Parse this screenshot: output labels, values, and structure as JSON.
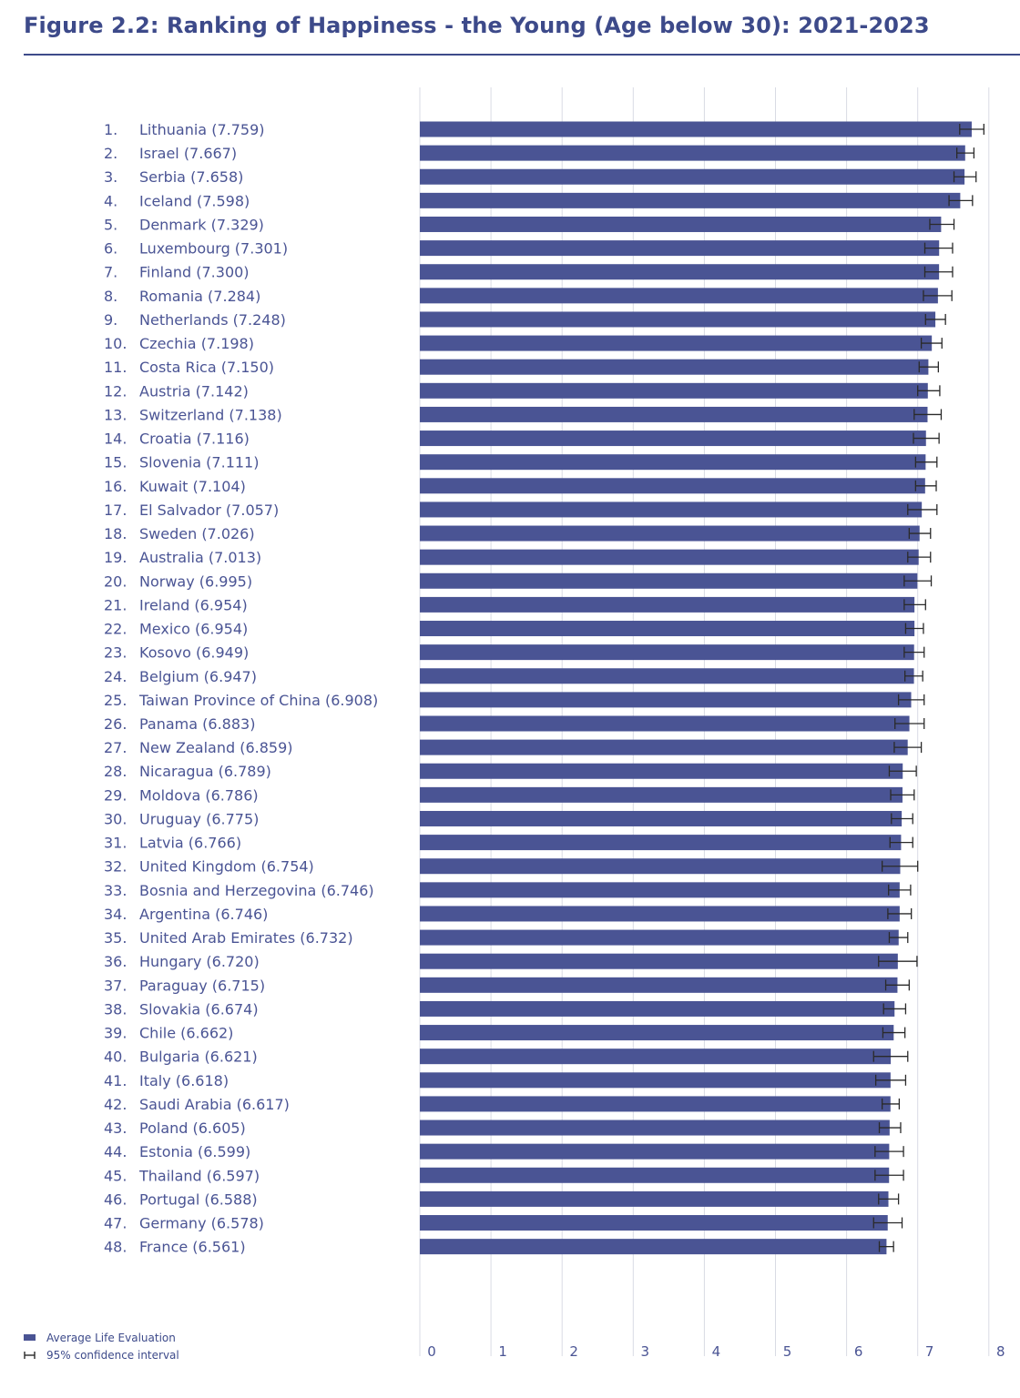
{
  "title": "Figure 2.2: Ranking of Happiness - the Young (Age below 30): 2021-2023",
  "colors": {
    "bar": "#4a5494",
    "title": "#3d4a8a",
    "label": "#4a5494",
    "grid": "#d9dbe4"
  },
  "legend": {
    "bar_label": "Average Life Evaluation",
    "ci_label": "95% confidence interval"
  },
  "chart_data": {
    "type": "bar",
    "orientation": "horizontal",
    "title": "Figure 2.2: Ranking of Happiness - the Young (Age below 30): 2021-2023",
    "xlim": [
      0,
      8
    ],
    "x_ticks": [
      "0",
      "1",
      "2",
      "3",
      "4",
      "5",
      "6",
      "7",
      "8"
    ],
    "grid": true,
    "legend_position": "bottom-left",
    "categories": [
      "Lithuania",
      "Israel",
      "Serbia",
      "Iceland",
      "Denmark",
      "Luxembourg",
      "Finland",
      "Romania",
      "Netherlands",
      "Czechia",
      "Costa Rica",
      "Austria",
      "Switzerland",
      "Croatia",
      "Slovenia",
      "Kuwait",
      "El Salvador",
      "Sweden",
      "Australia",
      "Norway",
      "Ireland",
      "Mexico",
      "Kosovo",
      "Belgium",
      "Taiwan Province of China",
      "Panama",
      "New Zealand",
      "Nicaragua",
      "Moldova",
      "Uruguay",
      "Latvia",
      "United Kingdom",
      "Bosnia and Herzegovina",
      "Argentina",
      "United Arab Emirates",
      "Hungary",
      "Paraguay",
      "Slovakia",
      "Chile",
      "Bulgaria",
      "Italy",
      "Saudi Arabia",
      "Poland",
      "Estonia",
      "Thailand",
      "Portugal",
      "Germany",
      "France"
    ],
    "labels": [
      "1. Lithuania (7.759)",
      "2. Israel (7.667)",
      "3. Serbia (7.658)",
      "4. Iceland (7.598)",
      "5. Denmark (7.329)",
      "6. Luxembourg (7.301)",
      "7. Finland (7.300)",
      "8. Romania (7.284)",
      "9. Netherlands (7.248)",
      "10. Czechia (7.198)",
      "11. Costa Rica (7.150)",
      "12. Austria (7.142)",
      "13. Switzerland (7.138)",
      "14. Croatia (7.116)",
      "15. Slovenia (7.111)",
      "16. Kuwait (7.104)",
      "17. El Salvador (7.057)",
      "18. Sweden (7.026)",
      "19. Australia (7.013)",
      "20. Norway (6.995)",
      "21. Ireland (6.954)",
      "22. Mexico (6.954)",
      "23. Kosovo (6.949)",
      "24. Belgium (6.947)",
      "25. Taiwan Province of China (6.908)",
      "26. Panama (6.883)",
      "27. New Zealand (6.859)",
      "28. Nicaragua (6.789)",
      "29. Moldova (6.786)",
      "30. Uruguay (6.775)",
      "31. Latvia (6.766)",
      "32. United Kingdom (6.754)",
      "33. Bosnia and Herzegovina (6.746)",
      "34. Argentina (6.746)",
      "35. United Arab Emirates (6.732)",
      "36. Hungary (6.720)",
      "37. Paraguay (6.715)",
      "38. Slovakia (6.674)",
      "39. Chile (6.662)",
      "40. Bulgaria (6.621)",
      "41. Italy (6.618)",
      "42. Saudi Arabia (6.617)",
      "43. Poland (6.605)",
      "44. Estonia (6.599)",
      "45. Thailand (6.597)",
      "46. Portugal (6.588)",
      "47. Germany (6.578)",
      "48. France (6.561)"
    ],
    "values": [
      7.759,
      7.667,
      7.658,
      7.598,
      7.329,
      7.301,
      7.3,
      7.284,
      7.248,
      7.198,
      7.15,
      7.142,
      7.138,
      7.116,
      7.111,
      7.104,
      7.057,
      7.026,
      7.013,
      6.995,
      6.954,
      6.954,
      6.949,
      6.947,
      6.908,
      6.883,
      6.859,
      6.789,
      6.786,
      6.775,
      6.766,
      6.754,
      6.746,
      6.746,
      6.732,
      6.72,
      6.715,
      6.674,
      6.662,
      6.621,
      6.618,
      6.617,
      6.605,
      6.599,
      6.597,
      6.588,
      6.578,
      6.561
    ],
    "ci_low": [
      7.59,
      7.55,
      7.51,
      7.44,
      7.17,
      7.1,
      7.1,
      7.08,
      7.11,
      7.05,
      7.02,
      7.0,
      6.95,
      6.94,
      6.97,
      6.97,
      6.86,
      6.88,
      6.86,
      6.81,
      6.81,
      6.83,
      6.81,
      6.82,
      6.73,
      6.68,
      6.67,
      6.6,
      6.62,
      6.63,
      6.61,
      6.5,
      6.59,
      6.58,
      6.6,
      6.45,
      6.55,
      6.52,
      6.51,
      6.38,
      6.41,
      6.5,
      6.46,
      6.4,
      6.4,
      6.45,
      6.38,
      6.46
    ],
    "ci_high": [
      7.93,
      7.79,
      7.82,
      7.77,
      7.51,
      7.49,
      7.49,
      7.48,
      7.39,
      7.34,
      7.29,
      7.31,
      7.33,
      7.3,
      7.27,
      7.26,
      7.27,
      7.18,
      7.18,
      7.19,
      7.11,
      7.08,
      7.09,
      7.07,
      7.09,
      7.09,
      7.05,
      6.98,
      6.95,
      6.93,
      6.93,
      7.0,
      6.9,
      6.91,
      6.86,
      6.99,
      6.88,
      6.83,
      6.82,
      6.86,
      6.83,
      6.74,
      6.76,
      6.8,
      6.8,
      6.73,
      6.78,
      6.66
    ]
  }
}
